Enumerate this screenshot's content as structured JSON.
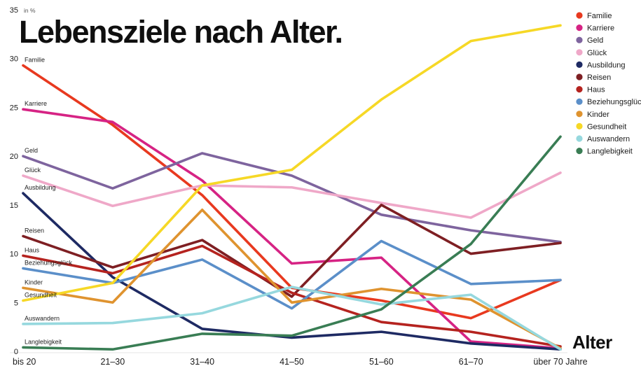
{
  "title": "Lebensziele nach Alter.",
  "x_axis_title": "Alter",
  "y_axis_unit": "in %",
  "chart_data": {
    "type": "line",
    "title": "Lebensziele nach Alter.",
    "unit_label": "in %",
    "xlabel": "Alter",
    "ylim": [
      0,
      35
    ],
    "yticks": [
      0,
      5,
      10,
      15,
      20,
      25,
      30,
      35
    ],
    "grid": false,
    "legend_position": "top-right",
    "categories": [
      "bis 20",
      "21–30",
      "31–40",
      "41–50",
      "51–60",
      "61–70",
      "über 70 Jahre"
    ],
    "series": [
      {
        "name": "Familie",
        "color": "#e8391f",
        "values": [
          29.3,
          23.2,
          16.0,
          6.5,
          5.2,
          3.4,
          7.3
        ]
      },
      {
        "name": "Karriere",
        "color": "#d62384",
        "values": [
          24.8,
          23.5,
          17.5,
          9.0,
          9.6,
          1.0,
          0.3
        ]
      },
      {
        "name": "Geld",
        "color": "#7e649e",
        "values": [
          20.0,
          16.7,
          20.3,
          18.0,
          14.0,
          12.4,
          11.2
        ]
      },
      {
        "name": "Glück",
        "color": "#efa8c8",
        "values": [
          18.0,
          14.9,
          17.0,
          16.8,
          15.2,
          13.7,
          18.3
        ]
      },
      {
        "name": "Ausbildung",
        "color": "#1e2a63",
        "values": [
          16.2,
          7.6,
          2.3,
          1.4,
          2.0,
          0.8,
          0.2
        ]
      },
      {
        "name": "Reisen",
        "color": "#7e1f23",
        "values": [
          11.8,
          8.6,
          11.4,
          5.6,
          15.0,
          10.0,
          11.1
        ]
      },
      {
        "name": "Haus",
        "color": "#b5231f",
        "values": [
          9.8,
          8.0,
          10.8,
          6.0,
          3.0,
          2.0,
          0.5
        ]
      },
      {
        "name": "Beziehungsglück",
        "color": "#5b8fc9",
        "values": [
          8.5,
          7.0,
          9.4,
          4.4,
          11.3,
          6.9,
          7.3
        ]
      },
      {
        "name": "Kinder",
        "color": "#df932f",
        "values": [
          6.5,
          5.0,
          14.5,
          5.0,
          6.4,
          5.3,
          0.3
        ]
      },
      {
        "name": "Gesundheit",
        "color": "#f6d826",
        "values": [
          5.2,
          7.0,
          17.0,
          18.6,
          25.8,
          31.8,
          33.4
        ]
      },
      {
        "name": "Auswandern",
        "color": "#96d8de",
        "values": [
          2.8,
          2.9,
          3.9,
          6.6,
          4.8,
          5.8,
          0.2
        ]
      },
      {
        "name": "Langlebigkeit",
        "color": "#397d54",
        "values": [
          0.4,
          0.2,
          1.8,
          1.6,
          4.3,
          11.0,
          22.0
        ]
      }
    ]
  }
}
